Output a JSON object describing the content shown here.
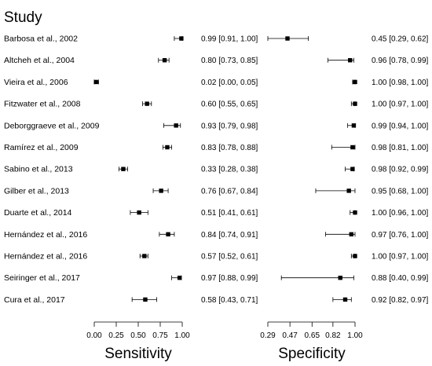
{
  "chart_data": {
    "type": "forest",
    "heading": "Study",
    "studies": [
      "Barbosa et al., 2002",
      "Altcheh et al., 2004",
      "Vieira et al., 2006",
      "Fitzwater et al., 2008",
      "Deborggraeve et al., 2009",
      "Ramírez et al., 2009",
      "Sabino et al., 2013",
      "Gilber et al., 2013",
      "Duarte et al., 2014",
      "Hernández et al., 2016",
      "Hernández et al., 2016",
      "Seiringer et al., 2017",
      "Cura et al., 2017"
    ],
    "panels": [
      {
        "title": "Sensitivity",
        "xlim": [
          0,
          1
        ],
        "ticks": [
          0,
          0.25,
          0.5,
          0.75,
          1
        ],
        "tick_labels": [
          "0.00",
          "0.25",
          "0.50",
          "0.75",
          "1.00"
        ],
        "estimates": [
          0.99,
          0.8,
          0.02,
          0.6,
          0.93,
          0.83,
          0.33,
          0.76,
          0.51,
          0.84,
          0.57,
          0.97,
          0.58
        ],
        "lower": [
          0.91,
          0.73,
          0.0,
          0.55,
          0.79,
          0.78,
          0.28,
          0.67,
          0.41,
          0.74,
          0.52,
          0.88,
          0.43
        ],
        "upper": [
          1.0,
          0.85,
          0.05,
          0.65,
          0.98,
          0.88,
          0.38,
          0.84,
          0.61,
          0.91,
          0.61,
          0.99,
          0.71
        ],
        "labels": [
          "0.99 [0.91, 1.00]",
          "0.80 [0.73, 0.85]",
          "0.02 [0.00, 0.05]",
          "0.60 [0.55, 0.65]",
          "0.93 [0.79, 0.98]",
          "0.83 [0.78, 0.88]",
          "0.33 [0.28, 0.38]",
          "0.76 [0.67, 0.84]",
          "0.51 [0.41, 0.61]",
          "0.84 [0.74, 0.91]",
          "0.57 [0.52, 0.61]",
          "0.97 [0.88, 0.99]",
          "0.58 [0.43, 0.71]"
        ]
      },
      {
        "title": "Specificity",
        "xlim": [
          0.29,
          1
        ],
        "ticks": [
          0.29,
          0.47,
          0.65,
          0.82,
          1
        ],
        "tick_labels": [
          "0.29",
          "0.47",
          "0.65",
          "0.82",
          "1.00"
        ],
        "estimates": [
          0.45,
          0.96,
          1.0,
          1.0,
          0.99,
          0.98,
          0.98,
          0.95,
          1.0,
          0.97,
          1.0,
          0.88,
          0.92
        ],
        "lower": [
          0.29,
          0.78,
          0.98,
          0.97,
          0.94,
          0.81,
          0.92,
          0.68,
          0.96,
          0.76,
          0.97,
          0.4,
          0.82
        ],
        "upper": [
          0.62,
          0.99,
          1.0,
          1.0,
          1.0,
          1.0,
          0.99,
          1.0,
          1.0,
          1.0,
          1.0,
          0.99,
          0.97
        ],
        "labels": [
          "0.45 [0.29, 0.62]",
          "0.96 [0.78, 0.99]",
          "1.00 [0.98, 1.00]",
          "1.00 [0.97, 1.00]",
          "0.99 [0.94, 1.00]",
          "0.98 [0.81, 1.00]",
          "0.98 [0.92, 0.99]",
          "0.95 [0.68, 1.00]",
          "1.00 [0.96, 1.00]",
          "0.97 [0.76, 1.00]",
          "1.00 [0.97, 1.00]",
          "0.88 [0.40, 0.99]",
          "0.92 [0.82, 0.97]"
        ]
      }
    ]
  }
}
